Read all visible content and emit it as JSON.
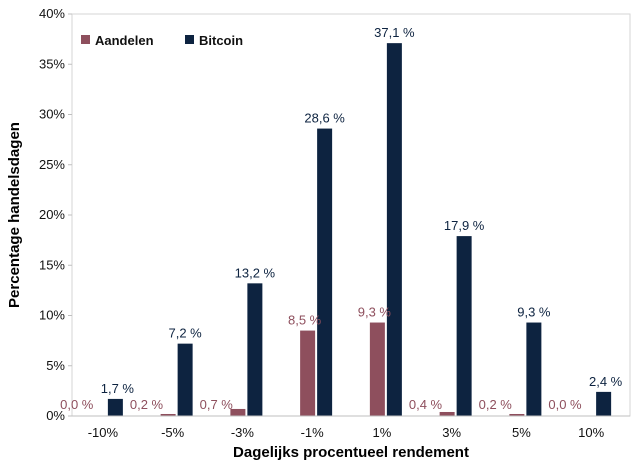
{
  "chart_data": {
    "type": "bar",
    "xlabel": "Dagelijks procentueel rendement",
    "ylabel": "Percentage handelsdagen",
    "categories": [
      "-10%",
      "-5%",
      "-3%",
      "-1%",
      "1%",
      "3%",
      "5%",
      "10%"
    ],
    "ylim": [
      0,
      40
    ],
    "yticks": [
      0,
      5,
      10,
      15,
      20,
      25,
      30,
      35,
      40
    ],
    "ytick_labels": [
      "0%",
      "5%",
      "10%",
      "15%",
      "20%",
      "25%",
      "30%",
      "35%",
      "40%"
    ],
    "grid": false,
    "legend_position": "top-left",
    "series": [
      {
        "name": "Aandelen",
        "color": "#8e4f5d",
        "values": [
          0.0,
          0.2,
          0.7,
          8.5,
          9.3,
          0.4,
          0.2,
          0.0
        ],
        "labels": [
          "0,0 %",
          "0,2 %",
          "0,7 %",
          "8,5 %",
          "9,3 %",
          "0,4 %",
          "0,2 %",
          "0,0 %"
        ]
      },
      {
        "name": "Bitcoin",
        "color": "#0d2340",
        "values": [
          1.7,
          7.2,
          13.2,
          28.6,
          37.1,
          17.9,
          9.3,
          2.4
        ],
        "labels": [
          "1,7 %",
          "7,2 %",
          "13,2 %",
          "28,6 %",
          "37,1 %",
          "17,9 %",
          "9,3 %",
          "2,4 %"
        ]
      }
    ]
  }
}
